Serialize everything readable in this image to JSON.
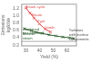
{
  "chart_data": {
    "type": "line",
    "xlabel": "Yield (%)",
    "ylabel": "Emissions\nkg/kWe",
    "xlim": [
      27,
      67
    ],
    "ylim": [
      0.18,
      1.32
    ],
    "xticks": [
      30,
      40,
      50,
      60
    ],
    "yticks": [
      0.2,
      0.4,
      0.6,
      0.8,
      {
        "value": 1.0,
        "label": "1.0"
      },
      1.2
    ],
    "grid": false,
    "series": [
      {
        "color": "#dd4444",
        "marker": "x",
        "x": [
          30,
          33,
          36,
          40,
          44,
          48
        ],
        "values": [
          1.22,
          1.08,
          0.94,
          0.78,
          0.64,
          0.56
        ]
      },
      {
        "color": "#2a5a2a",
        "marker": "x",
        "x": [
          29,
          34,
          38,
          42,
          47,
          52,
          57,
          62,
          65
        ],
        "values": [
          0.65,
          0.59,
          0.55,
          0.52,
          0.48,
          0.45,
          0.42,
          0.4,
          0.38
        ]
      }
    ],
    "hline": {
      "y": 0.3,
      "color": "#888888"
    },
    "annotations": [
      {
        "text": "Steam cycle",
        "x": 29.5,
        "y": 1.25,
        "color": "#dd4444"
      },
      {
        "text": "Steam",
        "x": 34.0,
        "y": 1.03,
        "color": "#dd4444"
      },
      {
        "text": "Fuel",
        "x": 38.5,
        "y": 0.85,
        "color": "#dd4444"
      },
      {
        "text": "Comb.",
        "x": 43.5,
        "y": 0.67,
        "color": "#dd4444"
      },
      {
        "text": "Combined\ngas-operated",
        "x": 27.5,
        "y": 0.58,
        "color": "#2a5a2a"
      },
      {
        "text": "Natural\nsteam",
        "x": 27.5,
        "y": 0.44,
        "color": "#2a5a2a"
      },
      {
        "text": "Turbines\nwith nuclear\ncomponents",
        "x": 61.5,
        "y": 0.48,
        "color": "#444444"
      }
    ]
  }
}
